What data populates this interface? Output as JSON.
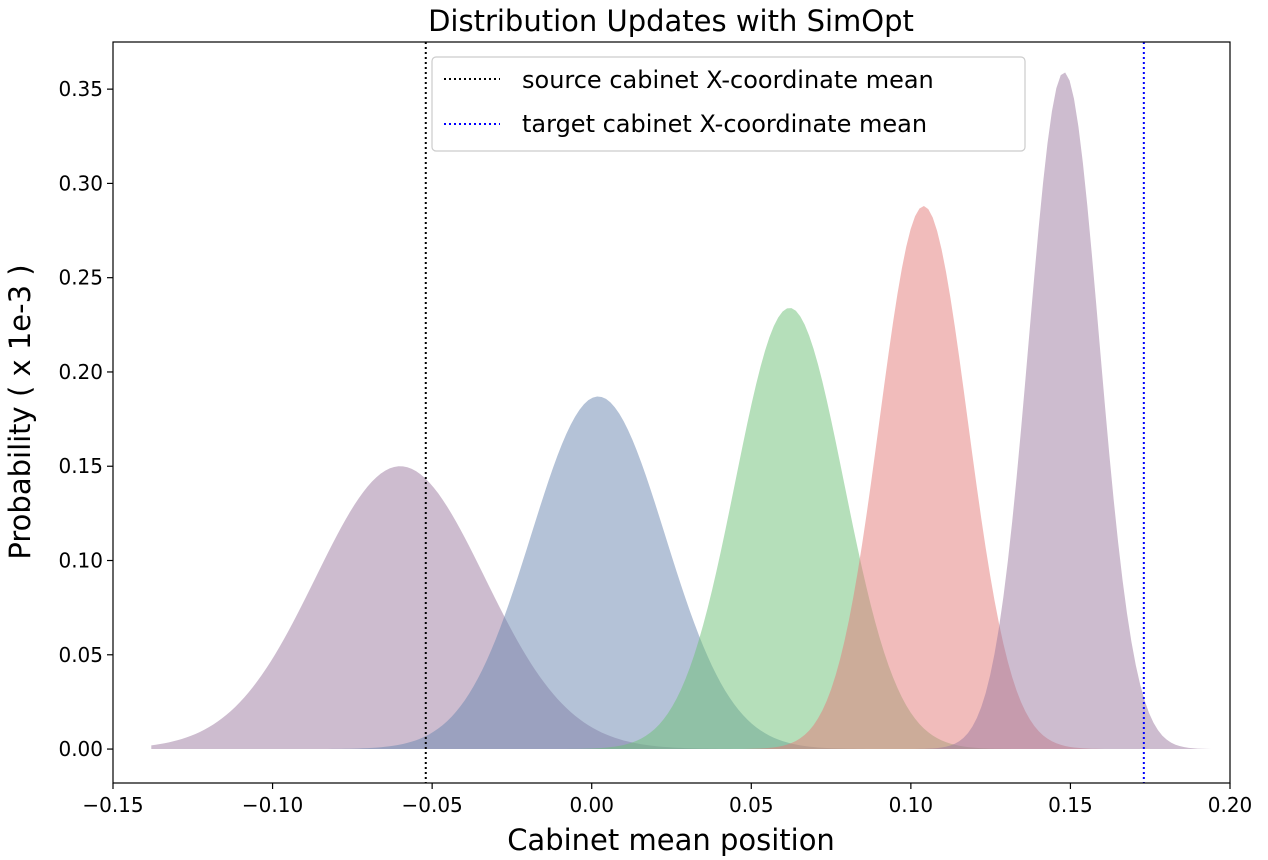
{
  "chart_data": {
    "type": "area",
    "title": "Distribution Updates with SimOpt",
    "xlabel": "Cabinet mean position",
    "ylabel": "Probability ( x 1e-3 )",
    "xlim": [
      -0.15,
      0.2
    ],
    "ylim": [
      -0.018,
      0.375
    ],
    "x_ticks": [
      -0.15,
      -0.1,
      -0.05,
      0.0,
      0.05,
      0.1,
      0.15,
      0.2
    ],
    "x_tick_labels": [
      "−0.15",
      "−0.10",
      "−0.05",
      "0.00",
      "0.05",
      "0.10",
      "0.15",
      "0.20"
    ],
    "y_ticks": [
      0.0,
      0.05,
      0.1,
      0.15,
      0.2,
      0.25,
      0.3,
      0.35
    ],
    "y_tick_labels": [
      "0.00",
      "0.05",
      "0.10",
      "0.15",
      "0.20",
      "0.25",
      "0.30",
      "0.35"
    ],
    "grid": false,
    "legend_position": "top-center",
    "series": [
      {
        "mean": -0.06,
        "std": 0.0265,
        "peak": 0.15,
        "color": "#9b7aa0"
      },
      {
        "mean": 0.002,
        "std": 0.021,
        "peak": 0.187,
        "color": "#6a86b0"
      },
      {
        "mean": 0.062,
        "std": 0.017,
        "peak": 0.234,
        "color": "#6cc075"
      },
      {
        "mean": 0.104,
        "std": 0.0138,
        "peak": 0.288,
        "color": "#e37a78"
      },
      {
        "mean": 0.148,
        "std": 0.011,
        "peak": 0.359,
        "color": "#9b7aa0"
      }
    ],
    "reference_lines": [
      {
        "name": "source cabinet X-coordinate mean",
        "x": -0.052,
        "color": "#000000",
        "style": "dotted"
      },
      {
        "name": "target cabinet X-coordinate mean",
        "x": 0.173,
        "color": "#0000ff",
        "style": "dotted"
      }
    ]
  }
}
